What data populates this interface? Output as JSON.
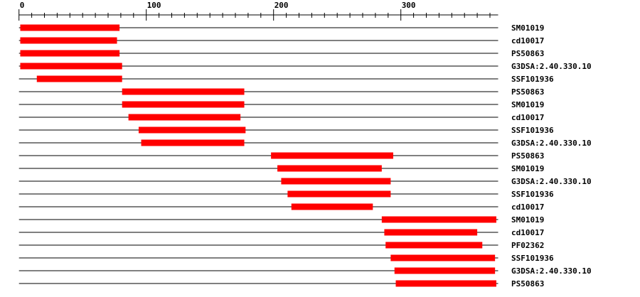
{
  "chart_data": {
    "type": "domain-architecture",
    "axis": {
      "range": [
        0,
        376
      ],
      "major_step": 100,
      "minor_step": 10,
      "tick_labels": [
        "0",
        "100",
        "200",
        "300"
      ]
    },
    "bar_color": "#ff0000",
    "tracks": [
      {
        "label": "SM01019",
        "start": 1,
        "end": 79
      },
      {
        "label": "cd10017",
        "start": 1,
        "end": 77
      },
      {
        "label": "PS50863",
        "start": 1,
        "end": 79
      },
      {
        "label": "G3DSA:2.40.330.10",
        "start": 1,
        "end": 81
      },
      {
        "label": "SSF101936",
        "start": 14,
        "end": 81
      },
      {
        "label": "PS50863",
        "start": 81,
        "end": 177
      },
      {
        "label": "SM01019",
        "start": 81,
        "end": 177
      },
      {
        "label": "cd10017",
        "start": 86,
        "end": 174
      },
      {
        "label": "SSF101936",
        "start": 94,
        "end": 178
      },
      {
        "label": "G3DSA:2.40.330.10",
        "start": 96,
        "end": 177
      },
      {
        "label": "PS50863",
        "start": 198,
        "end": 294
      },
      {
        "label": "SM01019",
        "start": 203,
        "end": 285
      },
      {
        "label": "G3DSA:2.40.330.10",
        "start": 206,
        "end": 292
      },
      {
        "label": "SSF101936",
        "start": 211,
        "end": 292
      },
      {
        "label": "cd10017",
        "start": 214,
        "end": 278
      },
      {
        "label": "SM01019",
        "start": 285,
        "end": 375
      },
      {
        "label": "cd10017",
        "start": 287,
        "end": 360
      },
      {
        "label": "PF02362",
        "start": 288,
        "end": 364
      },
      {
        "label": "SSF101936",
        "start": 292,
        "end": 374
      },
      {
        "label": "G3DSA:2.40.330.10",
        "start": 295,
        "end": 374
      },
      {
        "label": "PS50863",
        "start": 296,
        "end": 375
      }
    ]
  }
}
